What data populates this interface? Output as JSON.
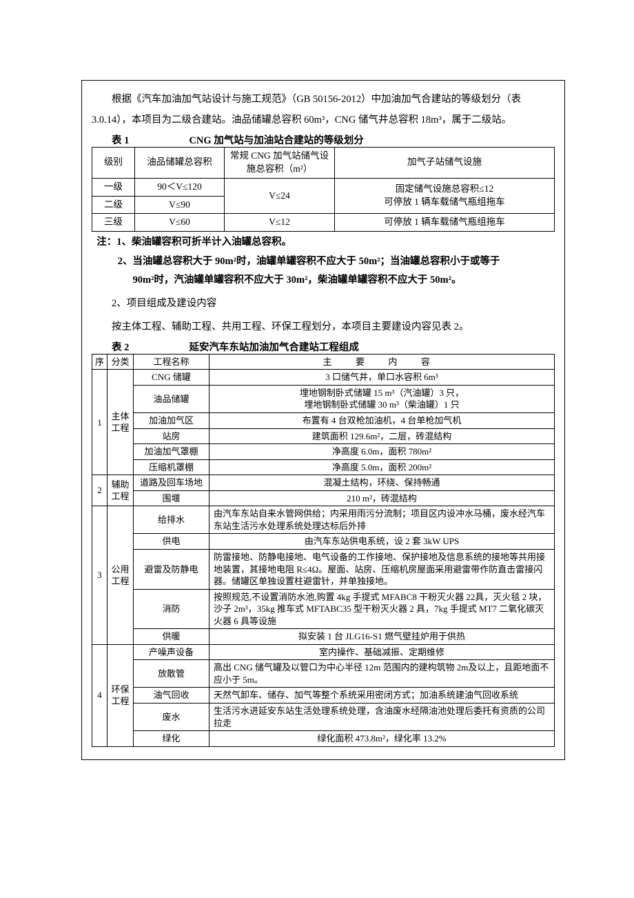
{
  "intro": "根据《汽车加油加气站设计与施工规范》（GB 50156-2012）中加油加气合建站的等级划分（表 3.0.14），本项目为二级合建站。油品储罐总容积 60m³，CNG 储气井总容积 18m³，属于二级站。",
  "table1": {
    "label": "表 1",
    "title": "CNG 加气站与加油站合建站的等级划分",
    "headers": {
      "c1": "级别",
      "c2": "油品储罐总容积",
      "c3": "常规 CNG 加气站储气设施总容积（m²）",
      "c4": "加气子站储气设施"
    },
    "r1": {
      "c1": "一级",
      "c2": "90＜V≤120",
      "c3a": "V≤24",
      "c4a": "固定储气设施总容积≤12",
      "c4b": "可停放 1 辆车载储气瓶组拖车"
    },
    "r2": {
      "c1": "二级",
      "c2": "V≤90"
    },
    "r3": {
      "c1": "三级",
      "c2": "V≤60",
      "c3": "V≤12",
      "c4": "可停放 1 辆车载储气瓶组拖车"
    }
  },
  "notes": {
    "n1": "注：1、柴油罐容积可折半计入油罐总容积。",
    "n2": "2、当油罐总容积大于 90m²时，油罐单罐容积不应大于 50m²；当油罐总容积小于或等于",
    "n3": "90m²时，汽油罐单罐容积不应大于 30m²，柴油罐单罐容积不应大于 50m²。"
  },
  "sec2_heading": "2、项目组成及建设内容",
  "body2": "按主体工程、辅助工程、共用工程、环保工程划分，本项目主要建设内容见表 2。",
  "table2": {
    "label": "表 2",
    "title": "延安汽车东站加油加气合建站工程组成",
    "headers": {
      "seq": "序",
      "cat": "分类",
      "name": "工程名称",
      "desc": "主  要  内  容"
    },
    "g1": {
      "seq": "1",
      "cat": "主体工程",
      "rows": [
        {
          "name": "CNG 储罐",
          "desc": "3 口储气井，单口水容积 6m³"
        },
        {
          "name": "油品储罐",
          "desc": "埋地钢制卧式储罐 15 m³（汽油罐）3 只，\n埋地钢制卧式储罐 30 m³（柴油罐）1 只"
        },
        {
          "name": "加油加气区",
          "desc": "布置有 4 台双枪加油机，4 台单枪加气机"
        },
        {
          "name": "站房",
          "desc": "建筑面积 129.6m²，二层，砖混结构"
        },
        {
          "name": "加油加气罩棚",
          "desc": "净高度 6.0m，面积 780m²"
        },
        {
          "name": "压缩机罩棚",
          "desc": "净高度 5.0m，面积 200m²"
        }
      ]
    },
    "g2": {
      "seq": "2",
      "cat": "辅助工程",
      "rows": [
        {
          "name": "道路及回车场地",
          "desc": "混凝土结构，环绕、保持畅通"
        },
        {
          "name": "围堰",
          "desc": "210 m²，砖混结构"
        }
      ]
    },
    "g3": {
      "seq": "3",
      "cat": "公用工程",
      "rows": [
        {
          "name": "给排水",
          "desc": "由汽车东站自来水管网供给；内采用雨污分流制；项目区内设冲水马桶，废水经汽车东站生活污水处理系统处理达标后外排"
        },
        {
          "name": "供电",
          "desc": "由汽车东站供电系统，设 2 套 3kW UPS"
        },
        {
          "name": "避雷及防静电",
          "desc": "防雷接地、防静电接地、电气设备的工作接地、保护接地及信息系统的接地等共用接地装置，其接地电阻 R≤4Ω。屋面、站房、压缩机房屋面采用避雷带作防直击雷接闪器。储罐区单独设置柱避雷针，并单独接地。"
        },
        {
          "name": "消防",
          "desc": "按照规范,不设置消防水池,购置 4kg 手提式 MFABC8 干粉灭火器 22具，灭火毯 2 块，沙子 2m³，35kg 推车式 MFTABC35 型干粉灭火器 2 具，7kg 手提式 MT7 二氧化碳灭火器 6 具等设施"
        },
        {
          "name": "供暖",
          "desc": "拟安装 1 台 JLG16-S1 燃气壁挂炉用于供热"
        }
      ]
    },
    "g4": {
      "seq": "4",
      "cat": "环保工程",
      "rows": [
        {
          "name": "产噪声设备",
          "desc": "室内操作、基础减振、定期维修"
        },
        {
          "name": "放散管",
          "desc": "高出 CNG 储气罐及以管口为中心半径 12m 范围内的建构筑物 2m及以上，且距地面不应小于 5m。"
        },
        {
          "name": "油气回收",
          "desc": "天然气卸车、储存、加气等整个系统采用密闭方式；加油系统建油气回收系统"
        },
        {
          "name": "废水",
          "desc": "生活污水进延安东站生活处理系统处理，含油废水经隔油池处理后委托有资质的公司拉走"
        },
        {
          "name": "绿化",
          "desc": "绿化面积 473.8m²，绿化率 13.2%"
        }
      ]
    }
  }
}
